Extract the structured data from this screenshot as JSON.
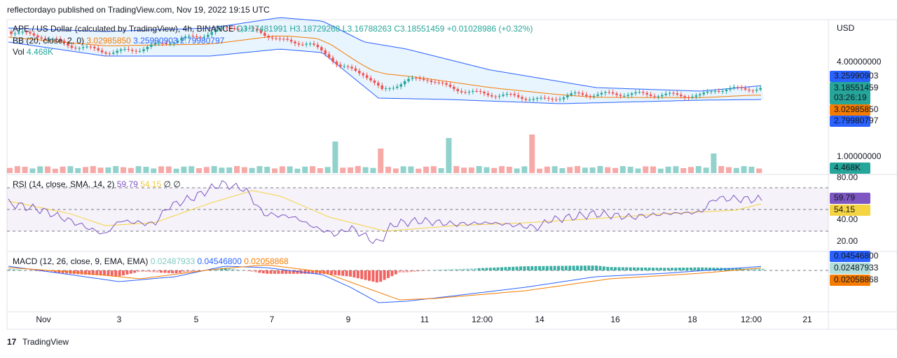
{
  "header": {
    "title": "reflectordayo published on TradingView.com, Nov 19, 2022 19:15 UTC"
  },
  "main": {
    "symbol": "APE / US Dollar (calculated by TradingView), 4h, BINANCE",
    "open": "O3.17481991",
    "high": "H3.18729268",
    "low": "L3.16788263",
    "close": "C3.18551459",
    "change": "+0.01028986 (+0.32%)",
    "bb": {
      "label": "BB (20, close, 2, 0)",
      "basis": "3.02985850",
      "upper": "3.25990903",
      "lower": "2.79980797"
    },
    "vol": {
      "label": "Vol",
      "value": "4.468K"
    }
  },
  "price_axis": {
    "unit": "USD",
    "ticks": [
      "4.00000000",
      "1.00000000"
    ],
    "upper_badge": "3.25990903",
    "close_badge": "3.18551459",
    "countdown": "03:26:19",
    "basis_badge": "3.02985850",
    "lower_badge": "2.79980797",
    "vol_badge": "4.468K"
  },
  "rsi": {
    "label": "RSI (14, close, SMA, 14, 2)",
    "value": "59.79",
    "sma": "54.15",
    "na1": "∅",
    "na2": "∅",
    "ticks": [
      "80.00",
      "40.00",
      "20.00"
    ],
    "value_badge": "59.79",
    "sma_badge": "54.15"
  },
  "macd": {
    "label": "MACD (12, 26, close, 9, EMA, EMA)",
    "hist": "0.02487933",
    "macd": "0.04546800",
    "signal": "0.02058868",
    "macd_badge": "0.04546800",
    "hist_badge": "0.02487933",
    "signal_badge": "0.02058868"
  },
  "x_axis": [
    "Nov",
    "3",
    "5",
    "7",
    "9",
    "11",
    "12:00",
    "14",
    "16",
    "18",
    "12:00",
    "21"
  ],
  "footer": {
    "brand": "TradingView"
  }
}
